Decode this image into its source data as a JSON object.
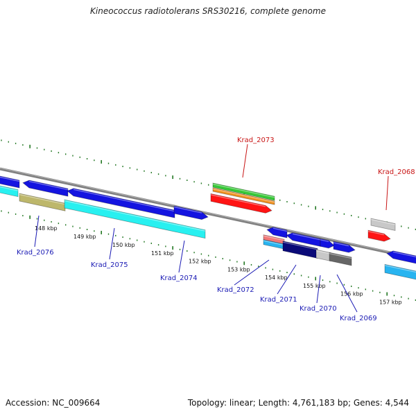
{
  "title": "Kineococcus radiotolerans SRS30216, complete genome",
  "accession": "Accession: NC_009664",
  "summary": "Topology: linear; Length: 4,761,183 bp; Genes: 4,544",
  "colors": {
    "blue": "#1414e0",
    "cyan": "#28f0f0",
    "khaki": "#bdb76b",
    "green": "#37c837",
    "orange": "#f0901e",
    "red": "#ff1414",
    "navy": "#0a0a78",
    "gray_dark": "#666666",
    "gray_light": "#c8c8c8",
    "salmon": "#f07878",
    "sky": "#28b4f0",
    "label_blue": "#1a1ab4",
    "label_red": "#c81414",
    "backbone": "#808080",
    "tick_green": "#227722"
  },
  "ticks": [
    {
      "label": "148 kbp"
    },
    {
      "label": "149 kbp"
    },
    {
      "label": "150 kbp"
    },
    {
      "label": "151 kbp"
    },
    {
      "label": "152 kbp"
    },
    {
      "label": "153 kbp"
    },
    {
      "label": "154 kbp"
    },
    {
      "label": "155 kbp"
    },
    {
      "label": "156 kbp"
    },
    {
      "label": "157 kbp"
    }
  ],
  "genes": [
    {
      "name": "Krad_2076",
      "highlight": "blue"
    },
    {
      "name": "Krad_2075",
      "highlight": "blue"
    },
    {
      "name": "Krad_2074",
      "highlight": "blue"
    },
    {
      "name": "Krad_2073",
      "highlight": "red"
    },
    {
      "name": "Krad_2072",
      "highlight": "blue"
    },
    {
      "name": "Krad_2071",
      "highlight": "blue"
    },
    {
      "name": "Krad_2070",
      "highlight": "blue"
    },
    {
      "name": "Krad_2069",
      "highlight": "blue"
    },
    {
      "name": "Krad_2068",
      "highlight": "red"
    }
  ]
}
